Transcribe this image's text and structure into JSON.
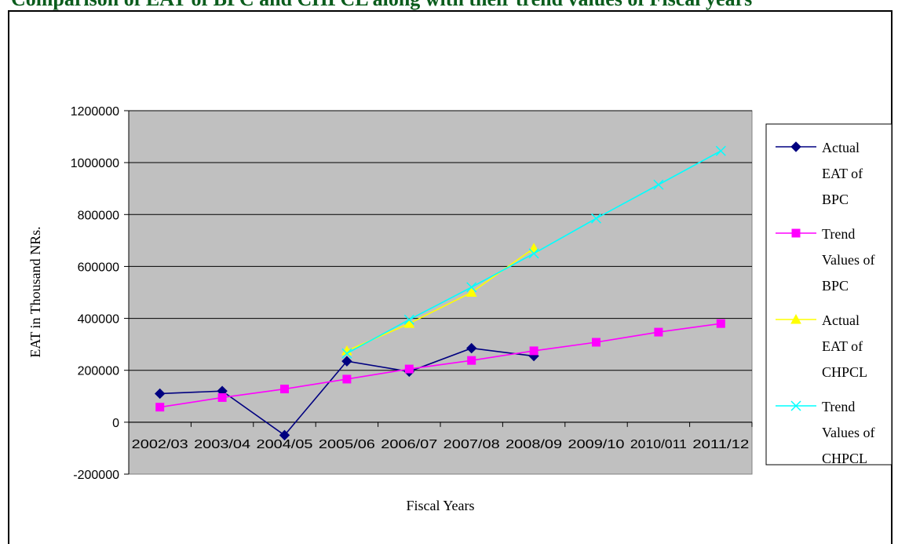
{
  "page": {
    "heading": "Comparison of EAT of BPC and CHPCL along with their trend values of Fiscal years"
  },
  "chart_data": {
    "type": "line",
    "title": "",
    "xlabel": "Fiscal Years",
    "ylabel": "EAT in Thousand NRs.",
    "ylim": [
      -200000,
      1200000
    ],
    "yticks": [
      -200000,
      0,
      200000,
      400000,
      600000,
      800000,
      1000000,
      1200000
    ],
    "ytick_labels": [
      "-200000",
      "0",
      "200000",
      "400000",
      "600000",
      "800000",
      "1000000",
      "1200000"
    ],
    "categories": [
      "2002/03",
      "2003/04",
      "2004/05",
      "2005/06",
      "2006/07",
      "2007/08",
      "2008/09",
      "2009/10",
      "2010/011",
      "2011/12"
    ],
    "grid": true,
    "plot_background": "#c0c0c0",
    "legend_position": "right",
    "series": [
      {
        "name": "Actual EAT of BPC",
        "legend_lines": [
          "Actual",
          "EAT of",
          "BPC"
        ],
        "color": "#000080",
        "marker": "diamond",
        "values": [
          110000,
          120000,
          -50000,
          235000,
          195000,
          285000,
          255000,
          null,
          null,
          null
        ]
      },
      {
        "name": "Trend Values of BPC",
        "legend_lines": [
          "Trend",
          "Values of",
          "BPC"
        ],
        "color": "#ff00ff",
        "marker": "square",
        "values": [
          58000,
          95000,
          128000,
          166000,
          205000,
          238000,
          275000,
          308000,
          347000,
          380000
        ]
      },
      {
        "name": "Actual EAT of CHPCL",
        "legend_lines": [
          "Actual",
          "EAT of",
          "CHPCL"
        ],
        "color": "#ffff00",
        "marker": "triangle",
        "values": [
          null,
          null,
          null,
          275000,
          380000,
          500000,
          670000,
          null,
          null,
          null
        ]
      },
      {
        "name": "Trend Values of CHPCL",
        "legend_lines": [
          "Trend",
          "Values of",
          "CHPCL"
        ],
        "color": "#00ffff",
        "marker": "x",
        "values": [
          null,
          null,
          null,
          265000,
          395000,
          520000,
          650000,
          785000,
          915000,
          1045000
        ]
      }
    ]
  }
}
